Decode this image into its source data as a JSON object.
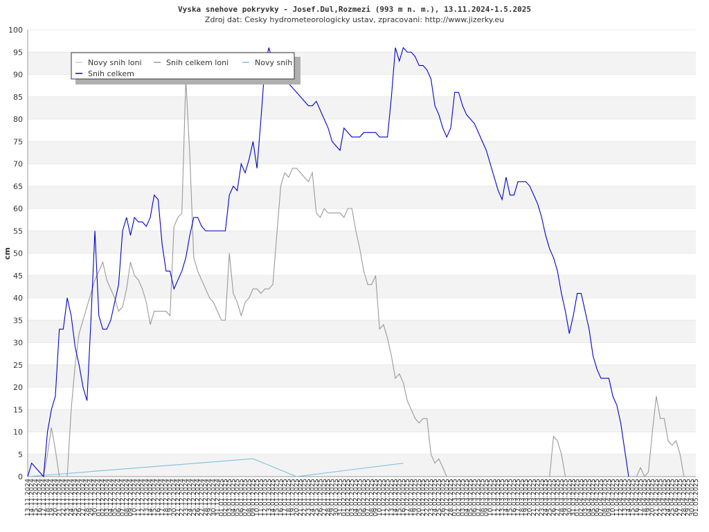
{
  "chart_data": {
    "type": "line",
    "title": "Vyska snehove pokryvky - Josef.Dul,Rozmezi (993 m n. m.), 13.11.2024-1.5.2025",
    "subtitle": "Zdroj dat: Cesky hydrometeorologicky ustav, zpracovani: http://www.jizerky.eu",
    "ylabel": "cm",
    "categories": [
      "13.11.2024",
      "14.11.2024",
      "15.11.2024",
      "16.11.2024",
      "17.11.2024",
      "18.11.2024",
      "19.11.2024",
      "20.11.2024",
      "21.11.2024",
      "22.11.2024",
      "23.11.2024",
      "24.11.2024",
      "25.11.2024",
      "26.11.2024",
      "27.11.2024",
      "28.11.2024",
      "29.11.2024",
      "30.11.2024",
      "01.12.2024",
      "02.12.2024",
      "03.12.2024",
      "04.12.2024",
      "05.12.2024",
      "06.12.2024",
      "07.12.2024",
      "08.12.2024",
      "09.12.2024",
      "10.12.2024",
      "11.12.2024",
      "12.12.2024",
      "13.12.2024",
      "14.12.2024",
      "15.12.2024",
      "16.12.2024",
      "17.12.2024",
      "18.12.2024",
      "19.12.2024",
      "20.12.2024",
      "21.12.2024",
      "22.12.2024",
      "23.12.2024",
      "24.12.2024",
      "25.12.2024",
      "26.12.2024",
      "27.12.2024",
      "28.12.2024",
      "29.12.2024",
      "30.12.2024",
      "31.12.2024",
      "01.01.2025",
      "02.01.2025",
      "03.01.2025",
      "04.01.2025",
      "05.01.2025",
      "06.01.2025",
      "07.01.2025",
      "08.01.2025",
      "09.01.2025",
      "10.01.2025",
      "11.01.2025",
      "12.01.2025",
      "13.01.2025",
      "14.01.2025",
      "15.01.2025",
      "16.01.2025",
      "17.01.2025",
      "18.01.2025",
      "19.01.2025",
      "20.01.2025",
      "21.01.2025",
      "22.01.2025",
      "23.01.2025",
      "24.01.2025",
      "25.01.2025",
      "26.01.2025",
      "27.01.2025",
      "28.01.2025",
      "29.01.2025",
      "30.01.2025",
      "31.01.2025",
      "01.02.2025",
      "02.02.2025",
      "03.02.2025",
      "04.02.2025",
      "05.02.2025",
      "06.02.2025",
      "07.02.2025",
      "08.02.2025",
      "09.02.2025",
      "10.02.2025",
      "11.02.2025",
      "12.02.2025",
      "13.02.2025",
      "14.02.2025",
      "15.02.2025",
      "16.02.2025",
      "17.02.2025",
      "18.02.2025",
      "19.02.2025",
      "20.02.2025",
      "21.02.2025",
      "22.02.2025",
      "23.02.2025",
      "24.02.2025",
      "25.02.2025",
      "26.02.2025",
      "27.02.2025",
      "28.02.2025",
      "01.03.2025",
      "02.03.2025",
      "03.03.2025",
      "04.03.2025",
      "05.03.2025",
      "06.03.2025",
      "07.03.2025",
      "08.03.2025",
      "09.03.2025",
      "10.03.2025",
      "11.03.2025",
      "12.03.2025",
      "13.03.2025",
      "14.03.2025",
      "15.03.2025",
      "16.03.2025",
      "17.03.2025",
      "18.03.2025",
      "19.03.2025",
      "20.03.2025",
      "21.03.2025",
      "22.03.2025",
      "23.03.2025",
      "24.03.2025",
      "25.03.2025",
      "26.03.2025",
      "27.03.2025",
      "28.03.2025",
      "29.03.2025",
      "30.03.2025",
      "31.03.2025",
      "01.04.2025",
      "02.04.2025",
      "03.04.2025",
      "04.04.2025",
      "05.04.2025",
      "06.04.2025",
      "07.04.2025",
      "08.04.2025",
      "09.04.2025",
      "10.04.2025",
      "11.04.2025",
      "12.04.2025",
      "13.04.2025",
      "14.04.2025",
      "15.04.2025",
      "16.04.2025",
      "17.04.2025",
      "18.04.2025",
      "19.04.2025",
      "20.04.2025",
      "21.04.2025",
      "22.04.2025",
      "23.04.2025",
      "24.04.2025",
      "25.04.2025",
      "26.04.2025",
      "27.04.2025",
      "28.04.2025",
      "29.04.2025",
      "30.04.2025",
      "01.05.2025"
    ],
    "series": [
      {
        "name": "Novy snih loni",
        "color": "#cccccc",
        "x": [],
        "values": []
      },
      {
        "name": "Snih celkem loni",
        "color": "#999999",
        "values": [
          null,
          null,
          null,
          null,
          0,
          5,
          11,
          6,
          0,
          0,
          0,
          15,
          25,
          32,
          35,
          38,
          41,
          44,
          46,
          48,
          44,
          42,
          40,
          37,
          38,
          42,
          48,
          45,
          44,
          42,
          39,
          34,
          37,
          37,
          37,
          37,
          36,
          56,
          58,
          59,
          89,
          72,
          49,
          46,
          44,
          42,
          40,
          39,
          37,
          35,
          35,
          50,
          41,
          39,
          36,
          39,
          40,
          42,
          42,
          41,
          42,
          42,
          43,
          54,
          65,
          68,
          67,
          69,
          69,
          68,
          67,
          66,
          68,
          59,
          58,
          60,
          59,
          59,
          59,
          59,
          58,
          60,
          60,
          55,
          51,
          46,
          43,
          43,
          45,
          33,
          34,
          31,
          27,
          22,
          23,
          21,
          17,
          15,
          13,
          12,
          13,
          13,
          5,
          3,
          4,
          2,
          0,
          0,
          0,
          0,
          0,
          0,
          0,
          0,
          0,
          0,
          0,
          0,
          0,
          0,
          0,
          0,
          0,
          0,
          0,
          0,
          0,
          0,
          0,
          0,
          0,
          0,
          0,
          9,
          8,
          5,
          0,
          0,
          0,
          0,
          0,
          0,
          0,
          0,
          0,
          0,
          0,
          0,
          0,
          0,
          0,
          0,
          0,
          0,
          0,
          2,
          0,
          1,
          10,
          18,
          13,
          13,
          8,
          7,
          8,
          5,
          0,
          null,
          null,
          null
        ]
      },
      {
        "name": "Novy snih",
        "color": "#7ec0e0",
        "x": [
          "13.11.2024",
          "09.01.2025",
          "20.01.2025",
          "16.02.2025"
        ],
        "values": [
          0,
          4,
          0,
          3
        ]
      },
      {
        "name": "Snih celkem",
        "color": "#0000cc",
        "values": [
          0,
          3,
          2,
          1,
          0,
          10,
          15,
          18,
          33,
          33,
          40,
          36,
          29,
          25,
          20,
          17,
          35,
          55,
          36,
          33,
          33,
          35,
          39,
          43,
          55,
          58,
          54,
          58,
          57,
          57,
          56,
          58,
          63,
          62,
          52,
          46,
          46,
          42,
          44,
          46,
          49,
          54,
          58,
          58,
          56,
          55,
          55,
          55,
          55,
          55,
          55,
          63,
          65,
          64,
          70,
          68,
          71,
          75,
          69,
          80,
          92,
          96,
          93,
          91,
          89,
          88,
          88,
          87,
          86,
          85,
          84,
          83,
          83,
          84,
          82,
          80,
          78,
          75,
          74,
          73,
          78,
          77,
          76,
          76,
          76,
          77,
          77,
          77,
          77,
          76,
          76,
          76,
          85,
          96,
          93,
          96,
          95,
          95,
          94,
          92,
          92,
          91,
          89,
          83,
          81,
          78,
          76,
          78,
          86,
          86,
          83,
          81,
          80,
          79,
          77,
          75,
          73,
          70,
          67,
          64,
          62,
          67,
          63,
          63,
          66,
          66,
          66,
          65,
          63,
          61,
          58,
          54,
          51,
          49,
          46,
          41,
          37,
          32,
          36,
          41,
          41,
          37,
          33,
          27,
          24,
          22,
          22,
          22,
          18,
          16,
          12,
          6,
          0,
          null,
          null,
          null,
          null,
          null,
          null,
          null,
          null,
          null,
          null,
          null,
          null,
          null,
          null,
          null,
          null,
          null
        ]
      }
    ],
    "ylim": [
      0,
      100
    ],
    "yticks": [
      0,
      5,
      10,
      15,
      20,
      25,
      30,
      35,
      40,
      45,
      50,
      55,
      60,
      65,
      70,
      75,
      80,
      85,
      90,
      95,
      100
    ],
    "grid": "bands",
    "legend": "top-left"
  }
}
